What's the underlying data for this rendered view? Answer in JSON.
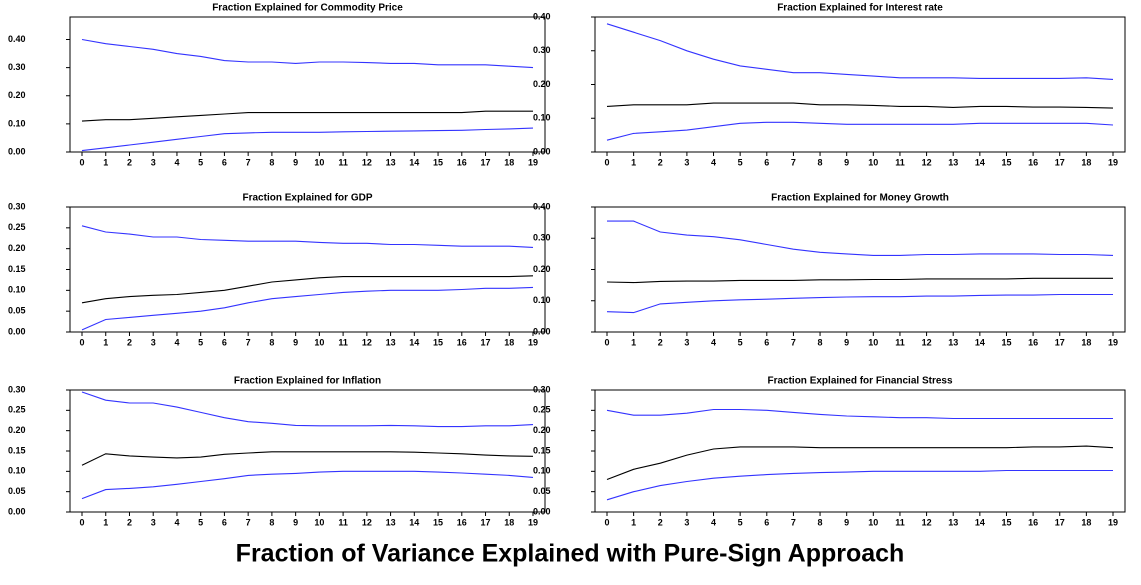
{
  "title": "Fraction of Variance Explained with Pure-Sign Approach",
  "chart_data": [
    {
      "type": "line",
      "title": "Fraction Explained for Commodity Price",
      "categories": [
        "0",
        "1",
        "2",
        "3",
        "4",
        "5",
        "6",
        "7",
        "8",
        "9",
        "10",
        "11",
        "12",
        "13",
        "14",
        "15",
        "16",
        "17",
        "18",
        "19"
      ],
      "ylim": [
        0,
        0.48
      ],
      "yticks": [
        {
          "value": 0,
          "label": "0.00"
        },
        {
          "value": 0.1,
          "label": "0.10"
        },
        {
          "value": 0.2,
          "label": "0.20"
        },
        {
          "value": 0.3,
          "label": "0.30"
        },
        {
          "value": 0.4,
          "label": "0.40"
        }
      ],
      "series": [
        {
          "color": "#3333ff",
          "values": [
            0.4,
            0.385,
            0.375,
            0.365,
            0.35,
            0.34,
            0.325,
            0.32,
            0.32,
            0.315,
            0.32,
            0.32,
            0.318,
            0.315,
            0.315,
            0.31,
            0.31,
            0.31,
            0.305,
            0.3
          ]
        },
        {
          "color": "#000000",
          "values": [
            0.11,
            0.115,
            0.115,
            0.12,
            0.125,
            0.13,
            0.135,
            0.14,
            0.14,
            0.14,
            0.14,
            0.14,
            0.14,
            0.14,
            0.14,
            0.14,
            0.14,
            0.145,
            0.145,
            0.145
          ]
        },
        {
          "color": "#3333ff",
          "values": [
            0.005,
            0.015,
            0.025,
            0.035,
            0.045,
            0.055,
            0.065,
            0.068,
            0.07,
            0.07,
            0.07,
            0.072,
            0.073,
            0.074,
            0.075,
            0.076,
            0.077,
            0.08,
            0.082,
            0.085
          ]
        }
      ]
    },
    {
      "type": "line",
      "title": "Fraction Explained for Interest rate",
      "categories": [
        "0",
        "1",
        "2",
        "3",
        "4",
        "5",
        "6",
        "7",
        "8",
        "9",
        "10",
        "11",
        "12",
        "13",
        "14",
        "15",
        "16",
        "17",
        "18",
        "19"
      ],
      "ylim": [
        0,
        0.4
      ],
      "yticks": [
        {
          "value": 0,
          "label": "0.00"
        },
        {
          "value": 0.1,
          "label": "0.10"
        },
        {
          "value": 0.2,
          "label": "0.20"
        },
        {
          "value": 0.3,
          "label": "0.30"
        },
        {
          "value": 0.4,
          "label": "0.40"
        }
      ],
      "series": [
        {
          "color": "#3333ff",
          "values": [
            0.38,
            0.355,
            0.33,
            0.3,
            0.275,
            0.255,
            0.245,
            0.235,
            0.235,
            0.23,
            0.225,
            0.22,
            0.22,
            0.22,
            0.218,
            0.218,
            0.218,
            0.218,
            0.22,
            0.215
          ]
        },
        {
          "color": "#000000",
          "values": [
            0.135,
            0.14,
            0.14,
            0.14,
            0.145,
            0.145,
            0.145,
            0.145,
            0.14,
            0.14,
            0.138,
            0.135,
            0.135,
            0.132,
            0.135,
            0.135,
            0.133,
            0.133,
            0.132,
            0.13
          ]
        },
        {
          "color": "#3333ff",
          "values": [
            0.035,
            0.055,
            0.06,
            0.065,
            0.075,
            0.085,
            0.088,
            0.088,
            0.085,
            0.082,
            0.082,
            0.082,
            0.082,
            0.082,
            0.085,
            0.085,
            0.085,
            0.085,
            0.085,
            0.08
          ]
        }
      ]
    },
    {
      "type": "line",
      "title": "Fraction Explained for GDP",
      "categories": [
        "0",
        "1",
        "2",
        "3",
        "4",
        "5",
        "6",
        "7",
        "8",
        "9",
        "10",
        "11",
        "12",
        "13",
        "14",
        "15",
        "16",
        "17",
        "18",
        "19"
      ],
      "ylim": [
        0,
        0.3
      ],
      "yticks": [
        {
          "value": 0,
          "label": "0.00"
        },
        {
          "value": 0.05,
          "label": "0.05"
        },
        {
          "value": 0.1,
          "label": "0.10"
        },
        {
          "value": 0.15,
          "label": "0.15"
        },
        {
          "value": 0.2,
          "label": "0.20"
        },
        {
          "value": 0.25,
          "label": "0.25"
        },
        {
          "value": 0.3,
          "label": "0.30"
        }
      ],
      "series": [
        {
          "color": "#3333ff",
          "values": [
            0.255,
            0.24,
            0.235,
            0.228,
            0.228,
            0.222,
            0.22,
            0.218,
            0.218,
            0.218,
            0.215,
            0.213,
            0.213,
            0.21,
            0.21,
            0.208,
            0.206,
            0.206,
            0.206,
            0.203
          ]
        },
        {
          "color": "#000000",
          "values": [
            0.07,
            0.08,
            0.085,
            0.088,
            0.09,
            0.095,
            0.1,
            0.11,
            0.12,
            0.125,
            0.13,
            0.133,
            0.133,
            0.133,
            0.133,
            0.133,
            0.133,
            0.133,
            0.133,
            0.135
          ]
        },
        {
          "color": "#3333ff",
          "values": [
            0.005,
            0.03,
            0.035,
            0.04,
            0.045,
            0.05,
            0.058,
            0.07,
            0.08,
            0.085,
            0.09,
            0.095,
            0.098,
            0.1,
            0.1,
            0.1,
            0.102,
            0.105,
            0.105,
            0.107
          ]
        }
      ]
    },
    {
      "type": "line",
      "title": "Fraction Explained for Money Growth",
      "categories": [
        "0",
        "1",
        "2",
        "3",
        "4",
        "5",
        "6",
        "7",
        "8",
        "9",
        "10",
        "11",
        "12",
        "13",
        "14",
        "15",
        "16",
        "17",
        "18",
        "19"
      ],
      "ylim": [
        0,
        0.4
      ],
      "yticks": [
        {
          "value": 0,
          "label": "0.00"
        },
        {
          "value": 0.1,
          "label": "0.10"
        },
        {
          "value": 0.2,
          "label": "0.20"
        },
        {
          "value": 0.3,
          "label": "0.30"
        },
        {
          "value": 0.4,
          "label": "0.40"
        }
      ],
      "series": [
        {
          "color": "#3333ff",
          "values": [
            0.355,
            0.355,
            0.32,
            0.31,
            0.305,
            0.295,
            0.28,
            0.265,
            0.255,
            0.25,
            0.245,
            0.245,
            0.248,
            0.248,
            0.25,
            0.25,
            0.25,
            0.248,
            0.248,
            0.245
          ]
        },
        {
          "color": "#000000",
          "values": [
            0.16,
            0.158,
            0.162,
            0.163,
            0.163,
            0.165,
            0.165,
            0.165,
            0.167,
            0.167,
            0.168,
            0.168,
            0.17,
            0.17,
            0.17,
            0.17,
            0.172,
            0.172,
            0.172,
            0.172
          ]
        },
        {
          "color": "#3333ff",
          "values": [
            0.065,
            0.062,
            0.09,
            0.095,
            0.1,
            0.103,
            0.105,
            0.108,
            0.11,
            0.112,
            0.113,
            0.113,
            0.115,
            0.115,
            0.117,
            0.118,
            0.118,
            0.12,
            0.12,
            0.12
          ]
        }
      ]
    },
    {
      "type": "line",
      "title": "Fraction Explained for Inflation",
      "categories": [
        "0",
        "1",
        "2",
        "3",
        "4",
        "5",
        "6",
        "7",
        "8",
        "9",
        "10",
        "11",
        "12",
        "13",
        "14",
        "15",
        "16",
        "17",
        "18",
        "19"
      ],
      "ylim": [
        0,
        0.3
      ],
      "yticks": [
        {
          "value": 0,
          "label": "0.00"
        },
        {
          "value": 0.05,
          "label": "0.05"
        },
        {
          "value": 0.1,
          "label": "0.10"
        },
        {
          "value": 0.15,
          "label": "0.15"
        },
        {
          "value": 0.2,
          "label": "0.20"
        },
        {
          "value": 0.25,
          "label": "0.25"
        },
        {
          "value": 0.3,
          "label": "0.30"
        }
      ],
      "series": [
        {
          "color": "#3333ff",
          "values": [
            0.295,
            0.275,
            0.268,
            0.268,
            0.258,
            0.245,
            0.232,
            0.222,
            0.218,
            0.213,
            0.212,
            0.212,
            0.212,
            0.213,
            0.212,
            0.21,
            0.21,
            0.212,
            0.212,
            0.215
          ]
        },
        {
          "color": "#000000",
          "values": [
            0.115,
            0.143,
            0.138,
            0.135,
            0.133,
            0.135,
            0.142,
            0.145,
            0.148,
            0.148,
            0.148,
            0.148,
            0.148,
            0.148,
            0.147,
            0.145,
            0.143,
            0.14,
            0.138,
            0.137
          ]
        },
        {
          "color": "#3333ff",
          "values": [
            0.033,
            0.055,
            0.058,
            0.062,
            0.068,
            0.075,
            0.082,
            0.09,
            0.093,
            0.095,
            0.098,
            0.1,
            0.1,
            0.1,
            0.1,
            0.098,
            0.096,
            0.093,
            0.09,
            0.085
          ]
        }
      ]
    },
    {
      "type": "line",
      "title": "Fraction Explained for Financial Stress",
      "categories": [
        "0",
        "1",
        "2",
        "3",
        "4",
        "5",
        "6",
        "7",
        "8",
        "9",
        "10",
        "11",
        "12",
        "13",
        "14",
        "15",
        "16",
        "17",
        "18",
        "19"
      ],
      "ylim": [
        0,
        0.3
      ],
      "yticks": [
        {
          "value": 0,
          "label": "0.00"
        },
        {
          "value": 0.05,
          "label": "0.05"
        },
        {
          "value": 0.1,
          "label": "0.10"
        },
        {
          "value": 0.15,
          "label": "0.15"
        },
        {
          "value": 0.2,
          "label": "0.20"
        },
        {
          "value": 0.25,
          "label": "0.25"
        },
        {
          "value": 0.3,
          "label": "0.30"
        }
      ],
      "series": [
        {
          "color": "#3333ff",
          "values": [
            0.25,
            0.238,
            0.238,
            0.243,
            0.252,
            0.252,
            0.25,
            0.245,
            0.24,
            0.236,
            0.234,
            0.232,
            0.232,
            0.23,
            0.23,
            0.23,
            0.23,
            0.23,
            0.23,
            0.23
          ]
        },
        {
          "color": "#000000",
          "values": [
            0.08,
            0.105,
            0.12,
            0.14,
            0.155,
            0.16,
            0.16,
            0.16,
            0.158,
            0.158,
            0.158,
            0.158,
            0.158,
            0.158,
            0.158,
            0.158,
            0.16,
            0.16,
            0.162,
            0.158
          ]
        },
        {
          "color": "#3333ff",
          "values": [
            0.03,
            0.05,
            0.065,
            0.075,
            0.083,
            0.088,
            0.092,
            0.095,
            0.097,
            0.098,
            0.1,
            0.1,
            0.1,
            0.1,
            0.1,
            0.102,
            0.102,
            0.102,
            0.102,
            0.102
          ]
        }
      ]
    }
  ]
}
